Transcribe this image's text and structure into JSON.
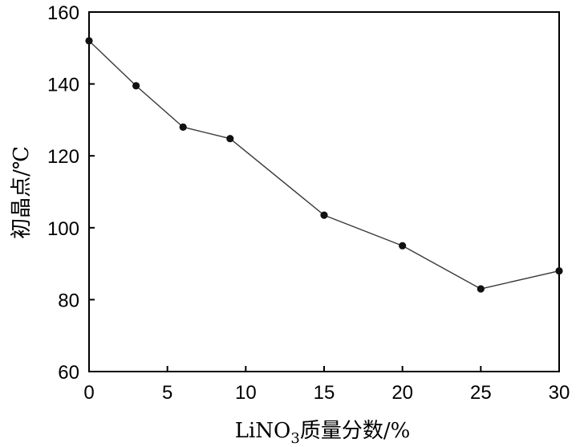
{
  "chart_data": {
    "type": "line",
    "title": "",
    "xlabel_parts": {
      "prefix": "LiNO",
      "sub": "3",
      "suffix": "质量分数/%"
    },
    "ylabel": "初晶点/℃",
    "xlim": [
      0,
      30
    ],
    "ylim": [
      60,
      160
    ],
    "xticks": [
      0,
      5,
      10,
      15,
      20,
      25,
      30
    ],
    "yticks": [
      60,
      80,
      100,
      120,
      140,
      160
    ],
    "grid": false,
    "legend": "none",
    "series": [
      {
        "x": [
          0,
          3,
          6,
          9,
          15,
          20,
          25,
          30
        ],
        "y": [
          152,
          139.5,
          128,
          124.8,
          103.5,
          95,
          83,
          88
        ]
      }
    ],
    "colors": {
      "line": "#3a3a3a",
      "marker": "#111111",
      "axis": "#000000"
    }
  }
}
